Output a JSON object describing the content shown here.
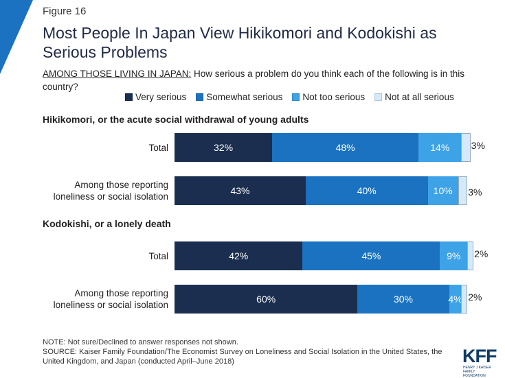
{
  "figure_label": "Figure 16",
  "title": "Most People In Japan View Hikikomori and Kodokishi as Serious Problems",
  "question_lead": "AMONG THOSE LIVING IN JAPAN:",
  "question_text": " How serious a problem do you think each of the following is in this country?",
  "colors": {
    "very_serious": "#1b2e4f",
    "somewhat_serious": "#1a72c0",
    "not_too_serious": "#3da2e6",
    "not_at_all_serious": "#d5e9f8",
    "accent": "#1a72c0"
  },
  "note": "NOTE: Not sure/Declined to answer responses not shown.",
  "source": "SOURCE: Kaiser Family Foundation/The Economist Survey on Loneliness and Social Isolation in the United States, the United Kingdom, and Japan (conducted April–June 2018)",
  "logo": {
    "text": "KFF",
    "subtext": "HENRY J KAISER FAMILY FOUNDATION"
  },
  "chart_data": {
    "type": "bar",
    "orientation": "horizontal",
    "stacked": true,
    "legend_placement": "top",
    "series": [
      {
        "name": "Very serious",
        "color": "#1b2e4f"
      },
      {
        "name": "Somewhat serious",
        "color": "#1a72c0"
      },
      {
        "name": "Not too serious",
        "color": "#3da2e6"
      },
      {
        "name": "Not at all serious",
        "color": "#d5e9f8"
      }
    ],
    "groups": [
      {
        "title": "Hikikomori, or the acute social withdrawal of young adults",
        "rows": [
          {
            "label": [
              "Total"
            ],
            "values": [
              32,
              48,
              14,
              3
            ],
            "labels": [
              "32%",
              "48%",
              "14%",
              "3%"
            ]
          },
          {
            "label": [
              "Among those reporting",
              "loneliness or social isolation"
            ],
            "values": [
              43,
              40,
              10,
              3
            ],
            "labels": [
              "43%",
              "40%",
              "10%",
              "3%"
            ]
          }
        ]
      },
      {
        "title": "Kodokishi, or a lonely death",
        "rows": [
          {
            "label": [
              "Total"
            ],
            "values": [
              42,
              45,
              9,
              2
            ],
            "labels": [
              "42%",
              "45%",
              "9%",
              "2%"
            ]
          },
          {
            "label": [
              "Among those reporting",
              "loneliness or social isolation"
            ],
            "values": [
              60,
              30,
              4,
              2
            ],
            "labels": [
              "60%",
              "30%",
              "4%",
              "2%"
            ]
          }
        ]
      }
    ]
  }
}
